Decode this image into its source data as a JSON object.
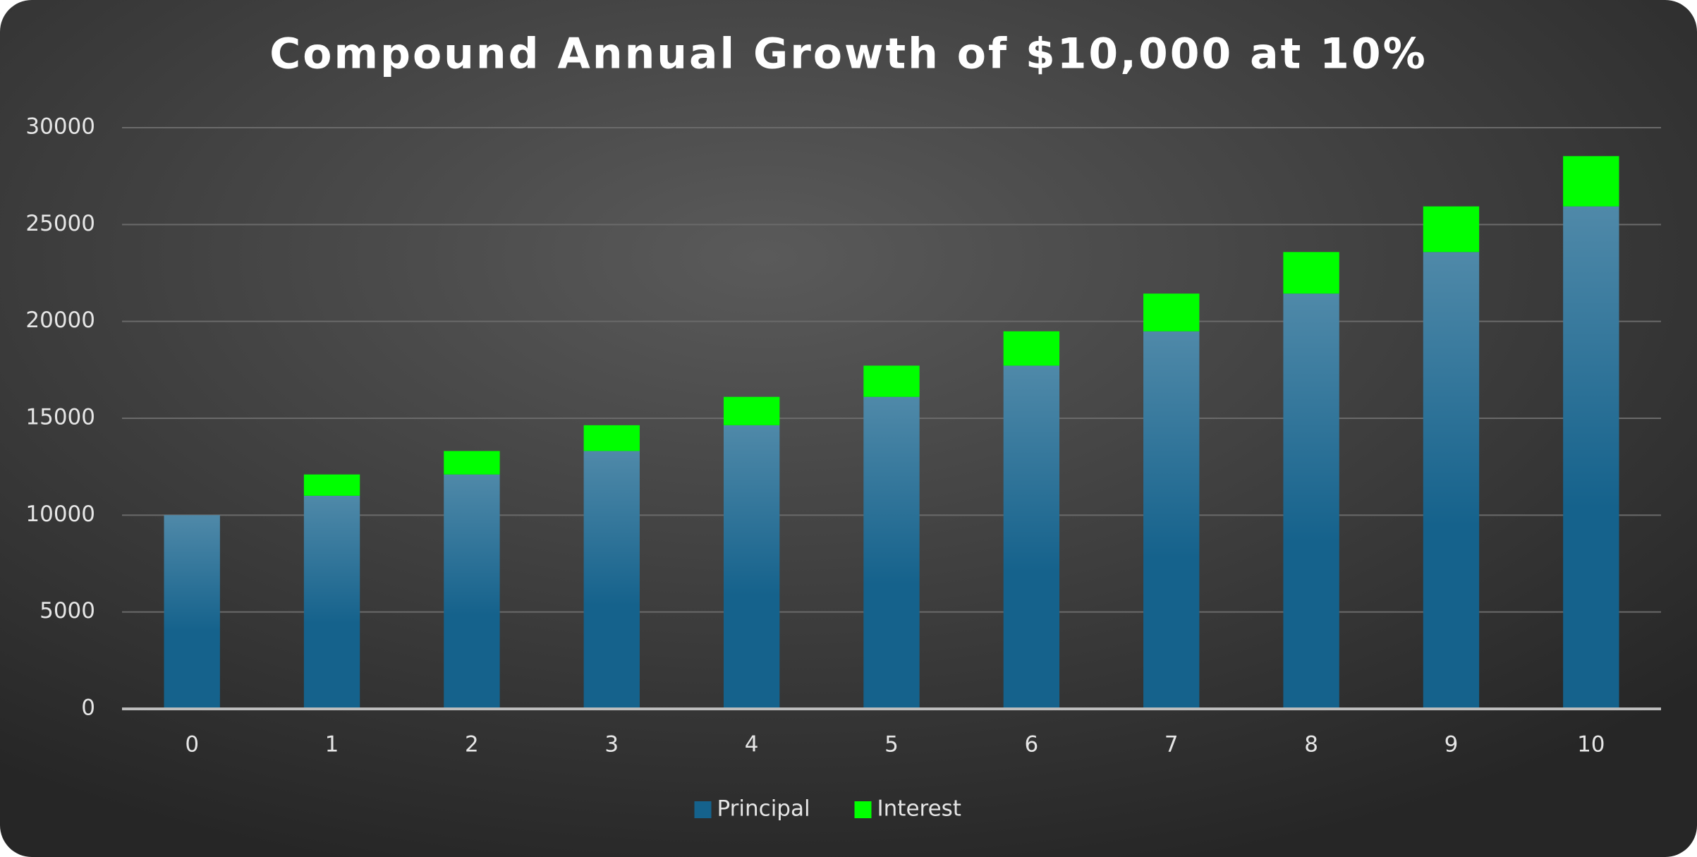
{
  "chart_data": {
    "type": "stacked_bar",
    "title": "Compound Annual Growth of $10,000 at 10%",
    "categories": [
      "0",
      "1",
      "2",
      "3",
      "4",
      "5",
      "6",
      "7",
      "8",
      "9",
      "10"
    ],
    "series": [
      {
        "name": "Principal",
        "color": "#15628c",
        "values": [
          10000,
          11000,
          12100,
          13310,
          14641,
          16105,
          17716,
          19487,
          21436,
          23579,
          25937
        ]
      },
      {
        "name": "Interest",
        "color": "#00ff00",
        "values": [
          0,
          1100,
          1210,
          1331,
          1464,
          1611,
          1772,
          1949,
          2144,
          2358,
          2594
        ]
      }
    ],
    "ylim": [
      0,
      30000
    ],
    "yticks": [
      0,
      5000,
      10000,
      15000,
      20000,
      25000,
      30000
    ],
    "grid": true,
    "legend": "bottom"
  }
}
